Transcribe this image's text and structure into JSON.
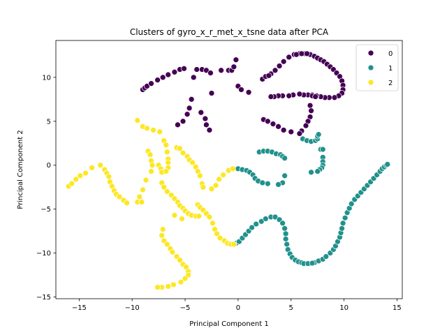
{
  "chart_data": {
    "type": "scatter",
    "title": "Clusters of gyro_x_r_met_x_tsne data after PCA",
    "xlabel": "Principal Component 1",
    "ylabel": "Principal Component 2",
    "xlim": [
      -17.2,
      15.5
    ],
    "ylim": [
      -15.2,
      14.2
    ],
    "xticks": [
      -15,
      -10,
      -5,
      0,
      5,
      10,
      15
    ],
    "yticks": [
      -15,
      -10,
      -5,
      0,
      5,
      10
    ],
    "grid": false,
    "legend": {
      "position": "top-right",
      "entries": [
        "0",
        "1",
        "2"
      ]
    },
    "colors": {
      "0": "#440154",
      "1": "#21918c",
      "2": "#fde725"
    },
    "series": [
      {
        "name": "0",
        "color": "#440154",
        "points": [
          [
            -9.0,
            8.6
          ],
          [
            -8.8,
            8.8
          ],
          [
            -8.6,
            9.0
          ],
          [
            -8.2,
            9.3
          ],
          [
            -7.6,
            9.7
          ],
          [
            -7.1,
            10.0
          ],
          [
            -6.6,
            10.3
          ],
          [
            -6.0,
            10.6
          ],
          [
            -5.5,
            10.9
          ],
          [
            -5.1,
            11.0
          ],
          [
            -4.2,
            10.0
          ],
          [
            -4.4,
            7.5
          ],
          [
            -4.6,
            6.5
          ],
          [
            -4.8,
            5.8
          ],
          [
            -5.2,
            5.0
          ],
          [
            -5.7,
            4.6
          ],
          [
            -3.9,
            10.9
          ],
          [
            -3.4,
            10.9
          ],
          [
            -3.0,
            10.8
          ],
          [
            -2.6,
            10.5
          ],
          [
            -2.5,
            8.2
          ],
          [
            -3.5,
            6.0
          ],
          [
            -3.1,
            5.3
          ],
          [
            -3.0,
            4.6
          ],
          [
            -2.7,
            4.0
          ],
          [
            -1.6,
            10.8
          ],
          [
            -0.9,
            10.8
          ],
          [
            -0.6,
            10.8
          ],
          [
            -0.4,
            11.2
          ],
          [
            -0.2,
            12.0
          ],
          [
            0.0,
            9.0
          ],
          [
            0.3,
            8.6
          ],
          [
            1.0,
            8.3
          ],
          [
            2.3,
            9.8
          ],
          [
            2.7,
            10.1
          ],
          [
            3.1,
            10.4
          ],
          [
            3.5,
            10.8
          ],
          [
            3.9,
            11.3
          ],
          [
            4.3,
            11.8
          ],
          [
            4.8,
            12.3
          ],
          [
            5.3,
            12.6
          ],
          [
            5.8,
            12.7
          ],
          [
            6.3,
            12.7
          ],
          [
            6.8,
            12.6
          ],
          [
            7.2,
            12.4
          ],
          [
            7.5,
            12.2
          ],
          [
            7.8,
            12.0
          ],
          [
            8.1,
            11.8
          ],
          [
            8.4,
            11.5
          ],
          [
            8.7,
            11.2
          ],
          [
            9.0,
            10.9
          ],
          [
            9.3,
            10.5
          ],
          [
            9.6,
            10.1
          ],
          [
            9.8,
            9.6
          ],
          [
            9.9,
            9.1
          ],
          [
            9.9,
            8.6
          ],
          [
            9.8,
            8.2
          ],
          [
            9.5,
            7.9
          ],
          [
            9.1,
            7.7
          ],
          [
            8.6,
            7.7
          ],
          [
            8.2,
            7.7
          ],
          [
            7.8,
            7.8
          ],
          [
            7.4,
            7.9
          ],
          [
            7.0,
            8.0
          ],
          [
            6.6,
            8.0
          ],
          [
            6.2,
            8.0
          ],
          [
            5.8,
            8.1
          ],
          [
            5.2,
            8.0
          ],
          [
            4.8,
            7.9
          ],
          [
            4.2,
            7.9
          ],
          [
            3.8,
            7.9
          ],
          [
            3.4,
            7.8
          ],
          [
            3.1,
            7.8
          ],
          [
            5.5,
            12.6
          ],
          [
            6.0,
            12.7
          ],
          [
            6.5,
            12.7
          ],
          [
            2.6,
            10.1
          ],
          [
            2.9,
            10.2
          ],
          [
            6.8,
            6.8
          ],
          [
            6.9,
            6.2
          ],
          [
            6.8,
            5.5
          ],
          [
            6.6,
            5.0
          ],
          [
            6.4,
            4.5
          ],
          [
            6.0,
            3.9
          ],
          [
            5.8,
            3.6
          ],
          [
            2.4,
            5.2
          ],
          [
            2.8,
            5.0
          ],
          [
            3.3,
            4.7
          ],
          [
            3.8,
            4.4
          ],
          [
            4.3,
            4.0
          ],
          [
            5.0,
            3.8
          ],
          [
            7.0,
            7.9
          ],
          [
            7.3,
            7.8
          ]
        ]
      },
      {
        "name": "1",
        "color": "#21918c",
        "points": [
          [
            0.0,
            -0.4
          ],
          [
            0.4,
            -0.5
          ],
          [
            0.8,
            -0.6
          ],
          [
            1.1,
            -0.8
          ],
          [
            1.4,
            -1.1
          ],
          [
            1.6,
            -1.5
          ],
          [
            1.9,
            -1.8
          ],
          [
            2.3,
            -2.0
          ],
          [
            2.8,
            -2.1
          ],
          [
            2.0,
            1.5
          ],
          [
            2.4,
            1.6
          ],
          [
            2.8,
            1.6
          ],
          [
            3.2,
            1.5
          ],
          [
            3.6,
            1.3
          ],
          [
            4.0,
            1.2
          ],
          [
            4.2,
            1.0
          ],
          [
            4.4,
            0.8
          ],
          [
            4.4,
            -1.2
          ],
          [
            4.2,
            -2.0
          ],
          [
            3.8,
            -2.2
          ],
          [
            6.1,
            3.0
          ],
          [
            6.5,
            2.8
          ],
          [
            6.9,
            2.7
          ],
          [
            7.3,
            2.8
          ],
          [
            7.5,
            3.0
          ],
          [
            7.5,
            3.3
          ],
          [
            7.6,
            3.5
          ],
          [
            7.8,
            1.8
          ],
          [
            8.0,
            1.8
          ],
          [
            8.0,
            0.9
          ],
          [
            8.0,
            0.4
          ],
          [
            8.0,
            0.0
          ],
          [
            7.9,
            -0.3
          ],
          [
            7.7,
            -0.5
          ],
          [
            7.5,
            -0.7
          ],
          [
            6.9,
            -0.8
          ],
          [
            -0.5,
            -9.0
          ],
          [
            -0.2,
            -8.9
          ],
          [
            0.1,
            -8.7
          ],
          [
            0.4,
            -8.3
          ],
          [
            0.7,
            -7.9
          ],
          [
            1.0,
            -7.5
          ],
          [
            1.3,
            -7.1
          ],
          [
            1.7,
            -6.7
          ],
          [
            2.2,
            -6.4
          ],
          [
            2.6,
            -6.1
          ],
          [
            3.1,
            -5.9
          ],
          [
            3.5,
            -5.9
          ],
          [
            3.9,
            -6.2
          ],
          [
            4.2,
            -6.6
          ],
          [
            4.4,
            -7.2
          ],
          [
            4.5,
            -7.8
          ],
          [
            4.5,
            -8.4
          ],
          [
            4.6,
            -9.0
          ],
          [
            4.7,
            -9.6
          ],
          [
            4.9,
            -10.1
          ],
          [
            5.1,
            -10.5
          ],
          [
            5.4,
            -10.8
          ],
          [
            5.7,
            -11.0
          ],
          [
            6.0,
            -11.1
          ],
          [
            6.4,
            -11.2
          ],
          [
            6.8,
            -11.2
          ],
          [
            7.2,
            -11.1
          ],
          [
            7.6,
            -10.9
          ],
          [
            8.0,
            -10.7
          ],
          [
            8.3,
            -10.4
          ],
          [
            8.7,
            -10.0
          ],
          [
            9.0,
            -9.6
          ],
          [
            9.2,
            -9.2
          ],
          [
            9.4,
            -8.7
          ],
          [
            9.6,
            -8.2
          ],
          [
            9.7,
            -7.7
          ],
          [
            9.8,
            -7.2
          ],
          [
            9.9,
            -6.6
          ],
          [
            10.1,
            -6.0
          ],
          [
            10.3,
            -5.4
          ],
          [
            10.5,
            -4.9
          ],
          [
            10.7,
            -4.4
          ],
          [
            11.0,
            -3.9
          ],
          [
            11.3,
            -3.5
          ],
          [
            11.6,
            -3.1
          ],
          [
            11.9,
            -2.7
          ],
          [
            12.2,
            -2.3
          ],
          [
            12.5,
            -1.9
          ],
          [
            12.8,
            -1.5
          ],
          [
            13.1,
            -1.1
          ],
          [
            13.4,
            -0.7
          ],
          [
            13.6,
            -0.4
          ],
          [
            13.8,
            -0.2
          ],
          [
            14.0,
            0.0
          ],
          [
            14.1,
            0.1
          ],
          [
            6.2,
            -11.2
          ],
          [
            6.6,
            -11.2
          ],
          [
            7.0,
            -11.15
          ]
        ]
      },
      {
        "name": "2",
        "color": "#fde725",
        "points": [
          [
            -16.0,
            -2.4
          ],
          [
            -15.7,
            -2.1
          ],
          [
            -15.3,
            -1.6
          ],
          [
            -14.9,
            -1.2
          ],
          [
            -14.4,
            -0.9
          ],
          [
            -13.8,
            -0.3
          ],
          [
            -13.0,
            0.0
          ],
          [
            -12.6,
            -0.5
          ],
          [
            -12.4,
            -0.9
          ],
          [
            -12.2,
            -1.3
          ],
          [
            -12.1,
            -1.9
          ],
          [
            -11.9,
            -2.4
          ],
          [
            -11.7,
            -2.9
          ],
          [
            -11.5,
            -3.3
          ],
          [
            -11.2,
            -3.6
          ],
          [
            -10.8,
            -4.0
          ],
          [
            -10.5,
            -4.3
          ],
          [
            -9.5,
            5.1
          ],
          [
            -9.0,
            4.4
          ],
          [
            -8.6,
            4.2
          ],
          [
            -8.0,
            4.0
          ],
          [
            -7.4,
            3.8
          ],
          [
            -8.5,
            1.6
          ],
          [
            -8.3,
            1.2
          ],
          [
            -8.2,
            0.5
          ],
          [
            -8.1,
            0.0
          ],
          [
            -8.2,
            -0.7
          ],
          [
            -8.7,
            -1.7
          ],
          [
            -9.0,
            -2.8
          ],
          [
            -9.3,
            -3.6
          ],
          [
            -9.5,
            -4.2
          ],
          [
            -9.1,
            -4.2
          ],
          [
            -7.5,
            0.0
          ],
          [
            -7.3,
            -0.4
          ],
          [
            -7.2,
            -0.8
          ],
          [
            -7.0,
            2.8
          ],
          [
            -6.8,
            2.3
          ],
          [
            -6.7,
            1.5
          ],
          [
            -6.6,
            0.7
          ],
          [
            -6.6,
            0.3
          ],
          [
            -6.6,
            -0.3
          ],
          [
            -6.8,
            -0.7
          ],
          [
            -7.2,
            -2.0
          ],
          [
            -7.0,
            -2.5
          ],
          [
            -6.7,
            -3.0
          ],
          [
            -6.3,
            -3.4
          ],
          [
            -6.0,
            -3.8
          ],
          [
            -5.7,
            -4.2
          ],
          [
            -5.5,
            -4.6
          ],
          [
            -5.2,
            -4.9
          ],
          [
            -5.0,
            -5.2
          ],
          [
            -4.7,
            -5.5
          ],
          [
            -4.4,
            -5.7
          ],
          [
            -4.0,
            -5.8
          ],
          [
            -3.7,
            -5.8
          ],
          [
            -5.3,
            -6.1
          ],
          [
            -6.0,
            -5.7
          ],
          [
            -5.8,
            2.0
          ],
          [
            -5.5,
            1.9
          ],
          [
            -5.2,
            1.4
          ],
          [
            -4.8,
            1.0
          ],
          [
            -4.6,
            0.6
          ],
          [
            -4.3,
            0.3
          ],
          [
            -4.0,
            -0.2
          ],
          [
            -3.8,
            -0.7
          ],
          [
            -3.6,
            -1.2
          ],
          [
            -3.4,
            -2.1
          ],
          [
            -3.3,
            -2.5
          ],
          [
            -2.5,
            -2.7
          ],
          [
            -2.1,
            -2.3
          ],
          [
            -1.8,
            -1.6
          ],
          [
            -1.4,
            -1.1
          ],
          [
            -0.9,
            -0.6
          ],
          [
            -0.5,
            -0.4
          ],
          [
            -3.8,
            -4.5
          ],
          [
            -3.6,
            -4.8
          ],
          [
            -3.3,
            -5.1
          ],
          [
            -3.0,
            -5.5
          ],
          [
            -2.7,
            -5.9
          ],
          [
            -2.4,
            -6.6
          ],
          [
            -2.2,
            -7.3
          ],
          [
            -2.0,
            -7.8
          ],
          [
            -1.7,
            -8.3
          ],
          [
            -1.3,
            -8.6
          ],
          [
            -1.0,
            -8.9
          ],
          [
            -0.7,
            -9.0
          ],
          [
            -0.4,
            -9.0
          ],
          [
            -7.1,
            -7.3
          ],
          [
            -7.2,
            -8.0
          ],
          [
            -7.0,
            -8.6
          ],
          [
            -6.7,
            -9.0
          ],
          [
            -6.4,
            -9.5
          ],
          [
            -6.2,
            -9.9
          ],
          [
            -5.8,
            -10.4
          ],
          [
            -5.5,
            -10.8
          ],
          [
            -5.2,
            -11.3
          ],
          [
            -4.9,
            -11.6
          ],
          [
            -4.7,
            -12.1
          ],
          [
            -4.7,
            -12.5
          ],
          [
            -5.0,
            -12.9
          ],
          [
            -5.4,
            -13.3
          ],
          [
            -6.1,
            -13.6
          ],
          [
            -6.6,
            -13.8
          ],
          [
            -7.2,
            -13.9
          ],
          [
            -7.6,
            -13.9
          ]
        ]
      }
    ]
  }
}
